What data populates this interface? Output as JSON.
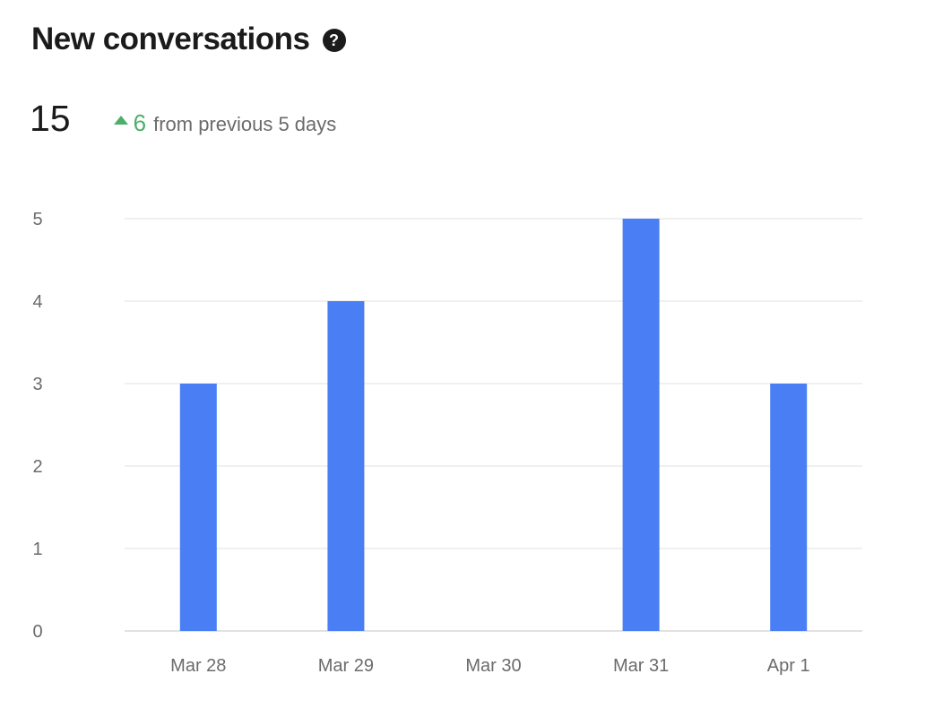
{
  "header": {
    "title": "New conversations",
    "help_icon": "question-circle-icon"
  },
  "summary": {
    "total": "15",
    "delta_value": "6",
    "delta_text": "from previous 5 days",
    "delta_direction_icon": "triangle-up-icon",
    "delta_color": "#4caf6a"
  },
  "chart_data": {
    "type": "bar",
    "categories": [
      "Mar 28",
      "Mar 29",
      "Mar 30",
      "Mar 31",
      "Apr 1"
    ],
    "values": [
      3,
      4,
      0,
      5,
      3
    ],
    "yticks": [
      "0",
      "1",
      "2",
      "3",
      "4",
      "5"
    ],
    "ylim": [
      0,
      5
    ],
    "grid": true,
    "bar_color": "#4a7ef5",
    "title": "",
    "xlabel": "",
    "ylabel": ""
  }
}
